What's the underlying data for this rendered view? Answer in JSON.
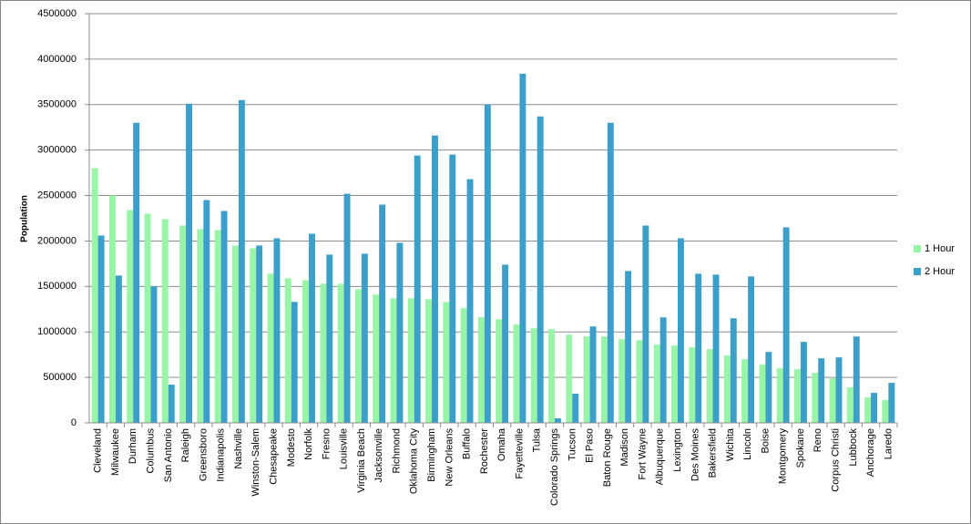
{
  "chart_data": {
    "type": "bar",
    "y_label": "Population",
    "categories": [
      "Cleveland",
      "Milwaukee",
      "Durham",
      "Columbus",
      "San Antonio",
      "Raleigh",
      "Greensboro",
      "Indianapolis",
      "Nashville",
      "Winston-Salem",
      "Chesapeake",
      "Modesto",
      "Norfolk",
      "Fresno",
      "Louisville",
      "Virginia Beach",
      "Jacksonville",
      "Richmond",
      "Oklahoma City",
      "Birmingham",
      "New Orleans",
      "Buffalo",
      "Rochester",
      "Omaha",
      "Fayetteville",
      "Tulsa",
      "Colorado Springs",
      "Tucson",
      "El Paso",
      "Baton Rouge",
      "Madison",
      "Fort Wayne",
      "Albuquerque",
      "Lexington",
      "Des Moines",
      "Bakersfield",
      "Wichita",
      "Lincoln",
      "Boise",
      "Montgomery",
      "Spokane",
      "Reno",
      "Corpus Christi",
      "Lubbock",
      "Anchorage",
      "Laredo"
    ],
    "series": [
      {
        "name": "1 Hour",
        "color": "#98f5a8",
        "values": [
          2800000,
          2500000,
          2340000,
          2300000,
          2240000,
          2170000,
          2130000,
          2120000,
          1950000,
          1920000,
          1640000,
          1590000,
          1570000,
          1530000,
          1530000,
          1470000,
          1410000,
          1370000,
          1370000,
          1360000,
          1330000,
          1260000,
          1160000,
          1140000,
          1080000,
          1040000,
          1030000,
          970000,
          950000,
          950000,
          920000,
          910000,
          860000,
          850000,
          830000,
          810000,
          740000,
          700000,
          640000,
          600000,
          590000,
          550000,
          490000,
          390000,
          280000,
          250000
        ]
      },
      {
        "name": "2 Hour",
        "color": "#3b9fca",
        "values": [
          2060000,
          1620000,
          3300000,
          1500000,
          420000,
          3510000,
          2450000,
          2330000,
          3550000,
          1950000,
          2030000,
          1330000,
          2080000,
          1850000,
          2520000,
          1860000,
          2400000,
          1980000,
          2940000,
          3160000,
          2950000,
          2680000,
          3500000,
          1740000,
          3840000,
          3370000,
          50000,
          320000,
          1060000,
          3300000,
          1670000,
          2170000,
          1160000,
          2030000,
          1640000,
          1630000,
          1150000,
          1610000,
          780000,
          2150000,
          890000,
          710000,
          720000,
          950000,
          330000,
          440000
        ]
      }
    ],
    "ylim": [
      0,
      4500000
    ],
    "yticks": [
      0,
      500000,
      1000000,
      1500000,
      2000000,
      2500000,
      3000000,
      3500000,
      4000000,
      4500000
    ],
    "grid": true,
    "legend": "right"
  }
}
